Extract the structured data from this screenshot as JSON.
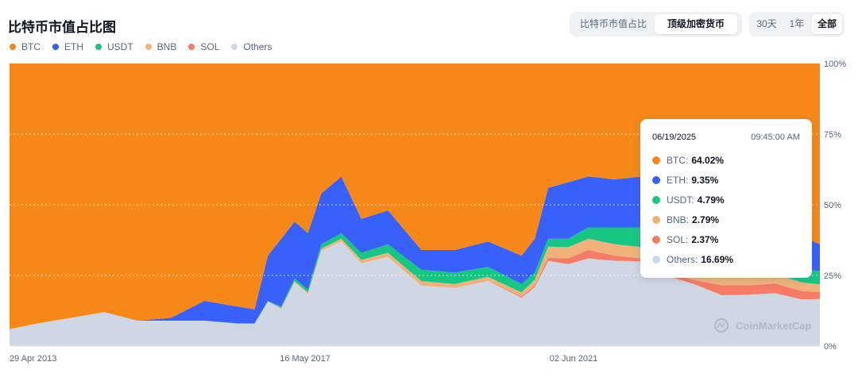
{
  "header": {
    "title": "比特币市值占比图",
    "view_tabs": [
      {
        "label": "比特币市值占比",
        "active": false
      },
      {
        "label": "顶级加密货币",
        "active": true
      }
    ],
    "range_tabs": [
      {
        "label": "30天",
        "active": false
      },
      {
        "label": "1年",
        "active": false
      },
      {
        "label": "全部",
        "active": true
      }
    ]
  },
  "legend": [
    {
      "name": "BTC",
      "color": "#f68819"
    },
    {
      "name": "ETH",
      "color": "#3861fb"
    },
    {
      "name": "USDT",
      "color": "#16c784"
    },
    {
      "name": "BNB",
      "color": "#f0b27a"
    },
    {
      "name": "SOL",
      "color": "#f47b65"
    },
    {
      "name": "Others",
      "color": "#cfd6e4"
    }
  ],
  "tooltip": {
    "date": "06/19/2025",
    "time": "09:45:00 AM",
    "rows": [
      {
        "name": "BTC:",
        "value": "64.02%",
        "color": "#f68819"
      },
      {
        "name": "ETH:",
        "value": "9.35%",
        "color": "#3861fb"
      },
      {
        "name": "USDT:",
        "value": "4.79%",
        "color": "#16c784"
      },
      {
        "name": "BNB:",
        "value": "2.79%",
        "color": "#f0b27a"
      },
      {
        "name": "SOL:",
        "value": "2.37%",
        "color": "#f47b65"
      },
      {
        "name": "Others:",
        "value": "16.69%",
        "color": "#cfd6e4"
      }
    ]
  },
  "watermark": "CoinMarketCap",
  "chart_data": {
    "type": "area",
    "stacked": true,
    "normalized": true,
    "x_tick_labels": [
      "29 Apr 2013",
      "16 May 2017",
      "02 Jun 2021"
    ],
    "y_tick_labels": [
      "100%",
      "75%",
      "50%",
      "25%",
      "0%"
    ],
    "ylim": [
      0,
      100
    ],
    "grid": true,
    "x": [
      2013.33,
      2013.75,
      2014.25,
      2014.75,
      2015.25,
      2015.75,
      2016.25,
      2016.75,
      2017.0,
      2017.2,
      2017.4,
      2017.6,
      2017.8,
      2018.0,
      2018.3,
      2018.6,
      2019.0,
      2019.5,
      2020.0,
      2020.5,
      2021.0,
      2021.2,
      2021.4,
      2021.7,
      2022.0,
      2022.4,
      2022.8,
      2023.2,
      2023.6,
      2024.0,
      2024.4,
      2024.8,
      2025.2,
      2025.47
    ],
    "series": [
      {
        "name": "BTC",
        "color": "#f68819",
        "values": [
          94.0,
          92.0,
          90.0,
          88.0,
          91.0,
          90.0,
          84.0,
          86.0,
          87.0,
          68.0,
          62.0,
          56.0,
          60.0,
          46.0,
          40.0,
          55.0,
          52.0,
          66.0,
          66.0,
          63.0,
          68.0,
          62.0,
          44.0,
          42.0,
          40.0,
          41.0,
          40.0,
          45.0,
          49.0,
          51.0,
          54.0,
          56.0,
          61.0,
          64.02
        ]
      },
      {
        "name": "ETH",
        "color": "#3861fb",
        "values": [
          0.0,
          0.0,
          0.0,
          0.0,
          0.0,
          1.0,
          7.0,
          6.0,
          5.0,
          16.0,
          24.0,
          20.0,
          20.0,
          18.0,
          20.0,
          12.0,
          12.0,
          7.0,
          8.0,
          9.0,
          10.0,
          12.0,
          18.0,
          20.0,
          18.0,
          17.0,
          18.0,
          18.0,
          17.0,
          17.0,
          16.0,
          14.0,
          12.0,
          9.35
        ]
      },
      {
        "name": "USDT",
        "color": "#16c784",
        "values": [
          0.0,
          0.0,
          0.0,
          0.0,
          0.0,
          0.0,
          0.0,
          0.0,
          0.0,
          0.2,
          0.5,
          1.0,
          1.0,
          1.5,
          2.0,
          2.5,
          3.0,
          4.0,
          4.0,
          3.5,
          3.0,
          2.5,
          2.8,
          3.0,
          4.0,
          6.0,
          7.0,
          7.5,
          7.5,
          7.0,
          5.0,
          4.5,
          4.5,
          4.79
        ]
      },
      {
        "name": "BNB",
        "color": "#f0b27a",
        "values": [
          0.0,
          0.0,
          0.0,
          0.0,
          0.0,
          0.0,
          0.0,
          0.0,
          0.0,
          0.1,
          0.3,
          0.5,
          0.5,
          0.8,
          1.0,
          1.2,
          1.5,
          1.6,
          1.4,
          1.2,
          1.5,
          2.0,
          4.0,
          4.0,
          4.0,
          4.0,
          4.0,
          3.6,
          3.2,
          3.5,
          3.5,
          3.4,
          3.0,
          2.79
        ]
      },
      {
        "name": "SOL",
        "color": "#f47b65",
        "values": [
          0.0,
          0.0,
          0.0,
          0.0,
          0.0,
          0.0,
          0.0,
          0.0,
          0.0,
          0.0,
          0.0,
          0.0,
          0.0,
          0.0,
          0.0,
          0.0,
          0.0,
          0.0,
          0.0,
          0.2,
          0.4,
          0.6,
          1.0,
          2.0,
          3.0,
          1.8,
          1.0,
          1.2,
          1.5,
          3.5,
          3.3,
          3.4,
          3.0,
          2.37
        ]
      },
      {
        "name": "Others",
        "color": "#cfd6e4",
        "values": [
          6.0,
          8.0,
          10.0,
          12.0,
          9.0,
          9.0,
          9.0,
          8.0,
          8.0,
          15.7,
          13.2,
          22.5,
          18.5,
          33.7,
          37.0,
          29.3,
          31.5,
          21.4,
          20.6,
          23.1,
          17.1,
          20.9,
          30.2,
          29.0,
          31.0,
          30.2,
          30.0,
          24.7,
          21.8,
          18.0,
          18.2,
          18.7,
          16.5,
          16.69
        ]
      }
    ]
  }
}
